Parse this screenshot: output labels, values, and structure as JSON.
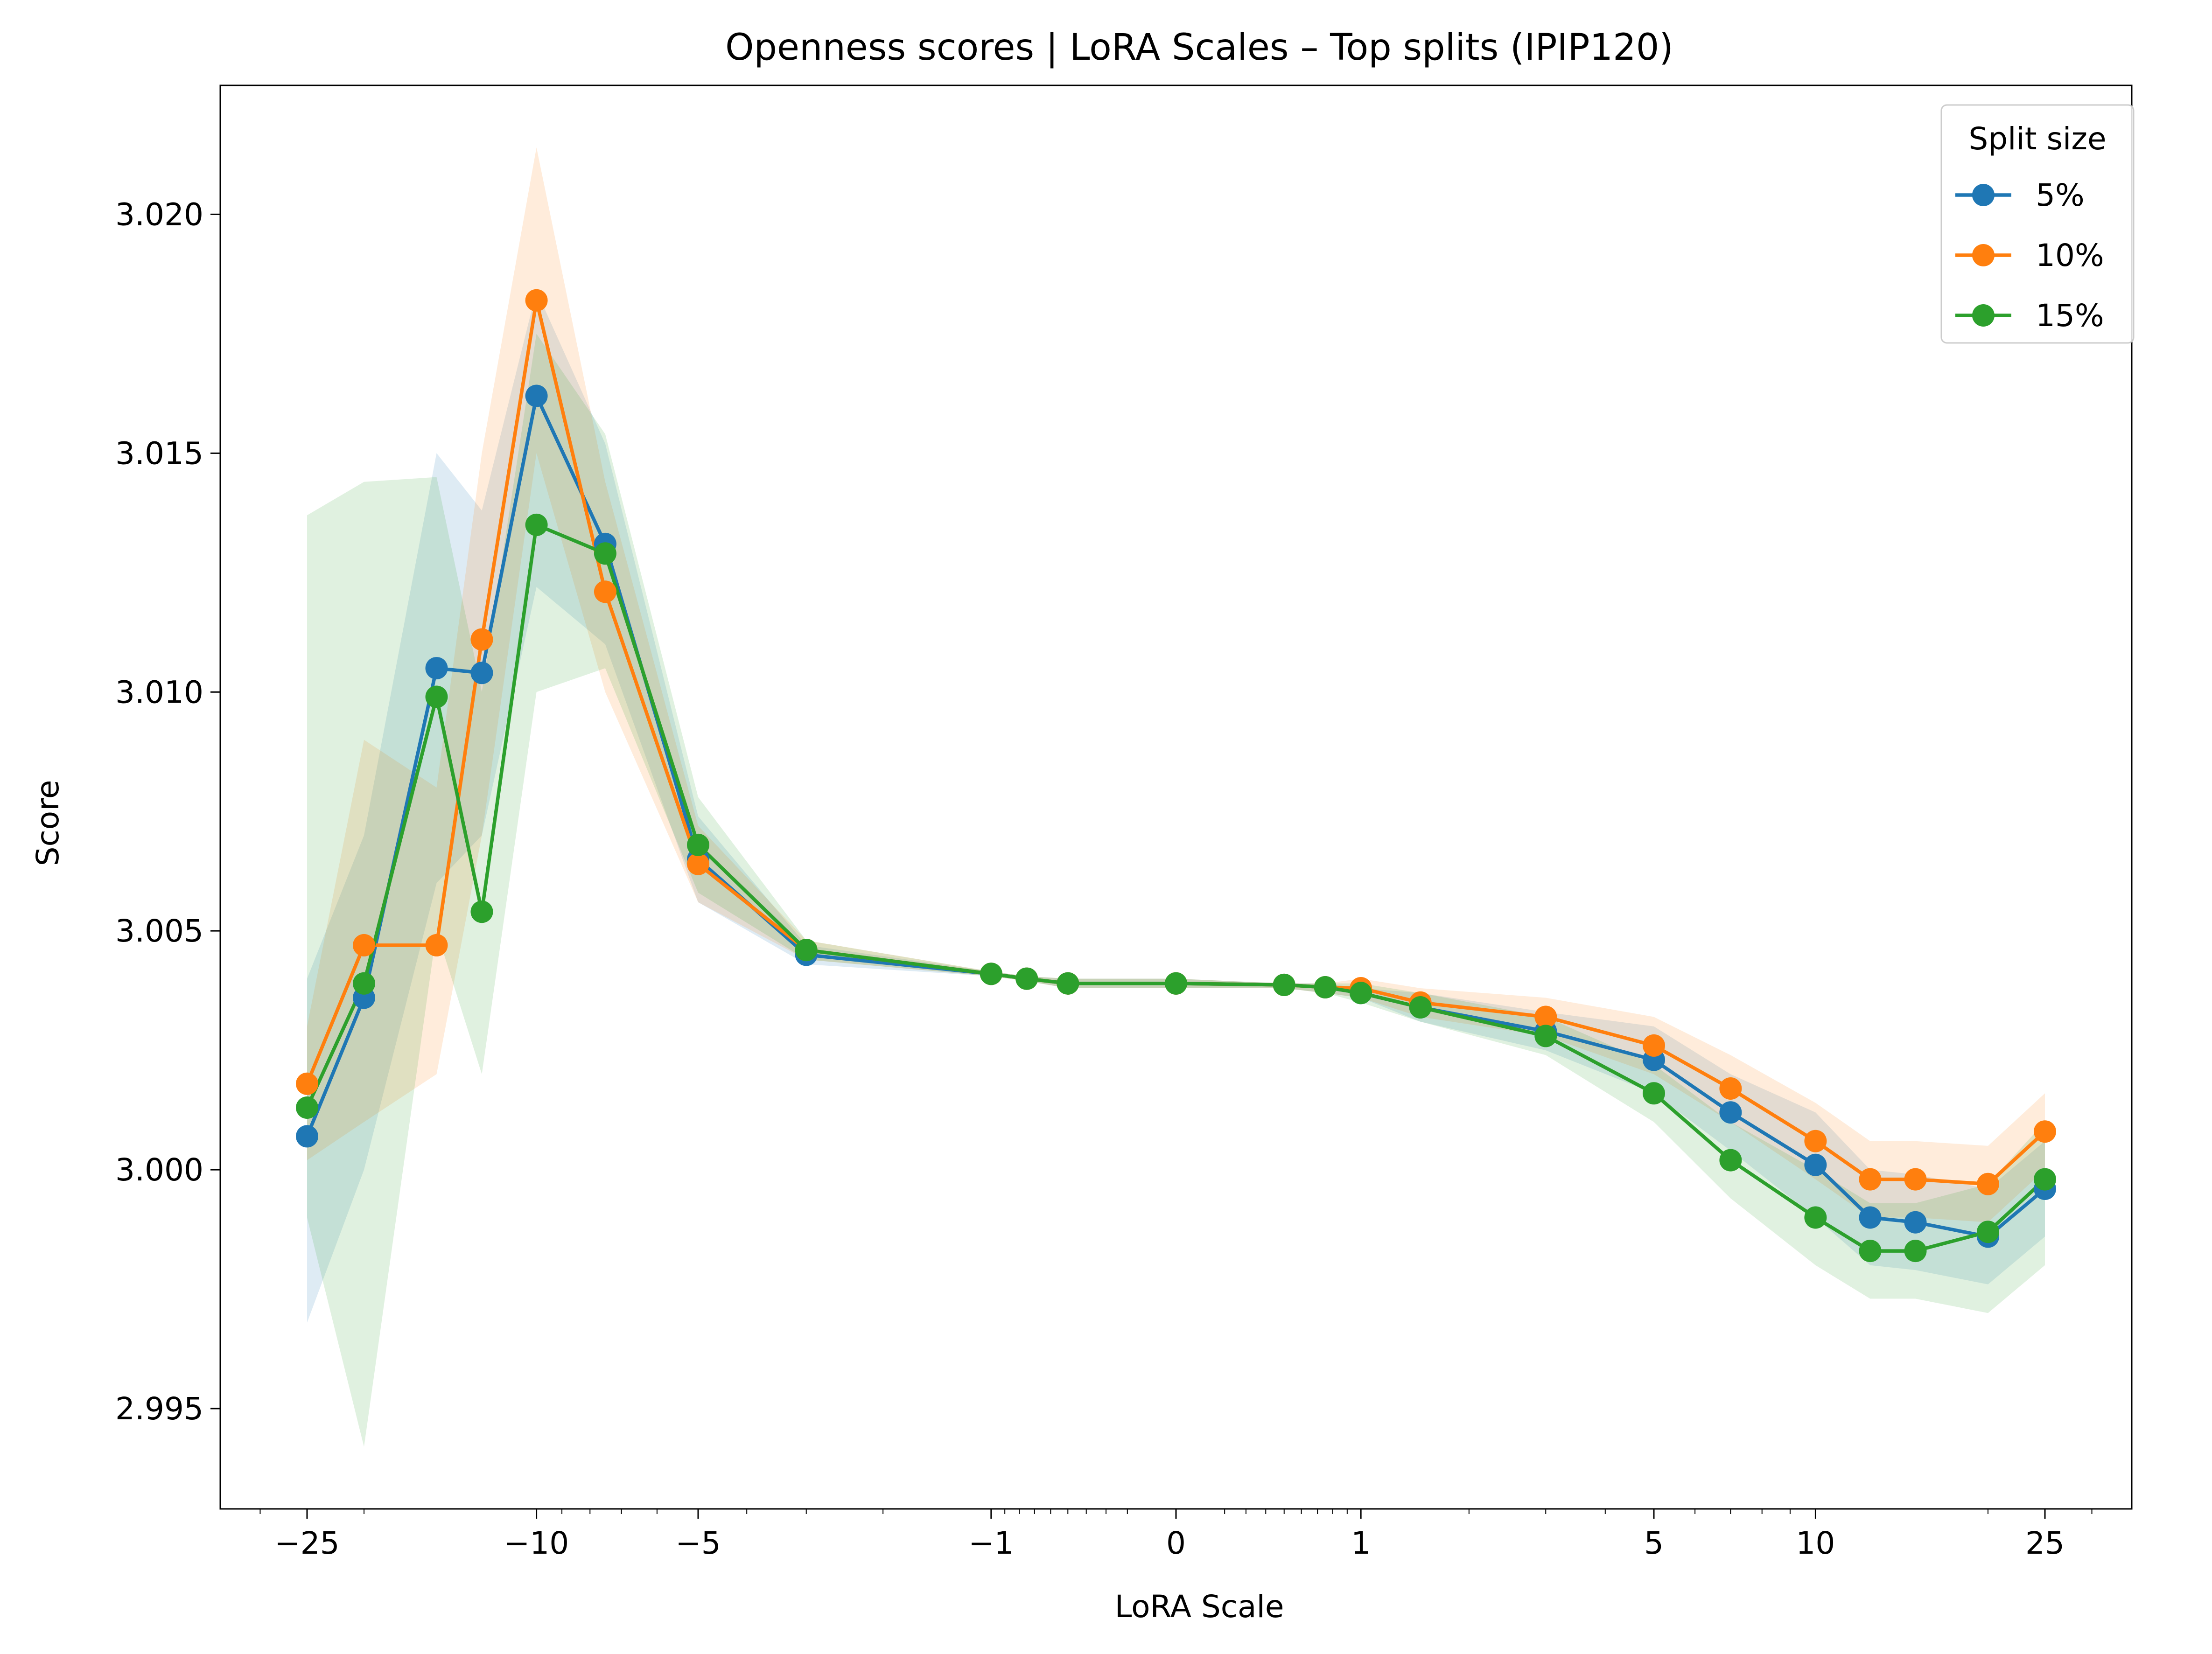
{
  "chart_data": {
    "type": "line",
    "title": "Openness scores | LoRA Scales – Top splits (IPIP120)",
    "xlabel": "LoRA Scale",
    "ylabel": "Score",
    "x_scale": "symlog",
    "xlim": [
      -35,
      35
    ],
    "ylim": [
      2.9929,
      3.0227
    ],
    "xticks": [
      {
        "value": -25,
        "label": "−25"
      },
      {
        "value": -10,
        "label": "−10"
      },
      {
        "value": -5,
        "label": "−5"
      },
      {
        "value": -1,
        "label": "−1"
      },
      {
        "value": 0,
        "label": "0"
      },
      {
        "value": 1,
        "label": "1"
      },
      {
        "value": 5,
        "label": "5"
      },
      {
        "value": 10,
        "label": "10"
      },
      {
        "value": 25,
        "label": "25"
      }
    ],
    "yticks": [
      {
        "value": 2.995,
        "label": "2.995"
      },
      {
        "value": 3.0,
        "label": "3.000"
      },
      {
        "value": 3.005,
        "label": "3.005"
      },
      {
        "value": 3.01,
        "label": "3.010"
      },
      {
        "value": 3.015,
        "label": "3.015"
      },
      {
        "value": 3.02,
        "label": "3.020"
      }
    ],
    "grid": false,
    "legend": {
      "title": "Split size",
      "position": "top-right"
    },
    "x": [
      -25,
      -20,
      -15,
      -12.5,
      -10,
      -7.5,
      -5,
      -3,
      -1,
      -0.75,
      -0.5,
      0,
      0.5,
      0.75,
      1,
      1.5,
      3,
      5,
      7,
      10,
      12.5,
      15,
      20,
      25
    ],
    "series": [
      {
        "name": "5%",
        "color": "#1f77b4",
        "values": [
          3.0007,
          3.0036,
          3.0105,
          3.0104,
          3.0162,
          3.0131,
          3.0065,
          3.0045,
          3.0041,
          3.004,
          3.0039,
          3.0039,
          3.00387,
          3.00382,
          3.0037,
          3.0034,
          3.0029,
          3.0023,
          3.0012,
          3.0001,
          2.999,
          2.9989,
          2.9986,
          2.9996
        ],
        "lower": [
          2.9968,
          3.0,
          3.006,
          3.007,
          3.0122,
          3.011,
          3.0056,
          3.0043,
          3.00405,
          3.00395,
          3.0038,
          3.0038,
          3.0038,
          3.0037,
          3.0036,
          3.0031,
          3.0025,
          3.0016,
          3.0004,
          2.999,
          2.998,
          2.9979,
          2.9976,
          2.9986
        ],
        "upper": [
          3.004,
          3.007,
          3.015,
          3.0138,
          3.0184,
          3.0152,
          3.0074,
          3.0047,
          3.00415,
          3.00405,
          3.004,
          3.004,
          3.0039,
          3.0039,
          3.0038,
          3.0037,
          3.0033,
          3.003,
          3.002,
          3.0012,
          3.0,
          2.9999,
          2.9996,
          3.0006
        ]
      },
      {
        "name": "10%",
        "color": "#ff7f0e",
        "values": [
          3.0018,
          3.0047,
          3.0047,
          3.0111,
          3.0182,
          3.0121,
          3.0064,
          3.0046,
          3.0041,
          3.004,
          3.0039,
          3.0039,
          3.00387,
          3.00382,
          3.0038,
          3.0035,
          3.0032,
          3.0026,
          3.0017,
          3.0006,
          2.9998,
          2.9998,
          2.9997,
          3.0008
        ],
        "lower": [
          3.0002,
          3.001,
          3.002,
          3.007,
          3.015,
          3.01,
          3.0056,
          3.0044,
          3.00405,
          3.00395,
          3.0038,
          3.0038,
          3.0038,
          3.0037,
          3.0036,
          3.0032,
          3.0028,
          3.002,
          3.001,
          2.9998,
          2.999,
          2.999,
          2.9989,
          3.0
        ],
        "upper": [
          3.003,
          3.009,
          3.008,
          3.015,
          3.0214,
          3.0144,
          3.0072,
          3.0048,
          3.00415,
          3.00405,
          3.004,
          3.004,
          3.0039,
          3.0039,
          3.004,
          3.0038,
          3.0036,
          3.0032,
          3.0024,
          3.0014,
          3.0006,
          3.0006,
          3.0005,
          3.0016
        ]
      },
      {
        "name": "15%",
        "color": "#2ca02c",
        "values": [
          3.0013,
          3.0039,
          3.0099,
          3.0054,
          3.0135,
          3.0129,
          3.0068,
          3.0046,
          3.0041,
          3.004,
          3.0039,
          3.0039,
          3.00387,
          3.00382,
          3.0037,
          3.0034,
          3.0028,
          3.0016,
          3.0002,
          2.999,
          2.9983,
          2.9983,
          2.9987,
          2.9998
        ],
        "lower": [
          2.999,
          2.9942,
          3.005,
          3.002,
          3.01,
          3.0105,
          3.0058,
          3.0044,
          3.00405,
          3.00395,
          3.0038,
          3.0038,
          3.0038,
          3.0037,
          3.0035,
          3.0031,
          3.0024,
          3.001,
          2.9994,
          2.998,
          2.9973,
          2.9973,
          2.997,
          2.998
        ],
        "upper": [
          3.0137,
          3.0144,
          3.0145,
          3.01,
          3.0175,
          3.0154,
          3.0078,
          3.0048,
          3.00415,
          3.00405,
          3.004,
          3.004,
          3.0039,
          3.0039,
          3.0039,
          3.0037,
          3.0032,
          3.0022,
          3.001,
          3.0,
          2.9993,
          2.9993,
          2.9997,
          3.001
        ]
      }
    ]
  }
}
